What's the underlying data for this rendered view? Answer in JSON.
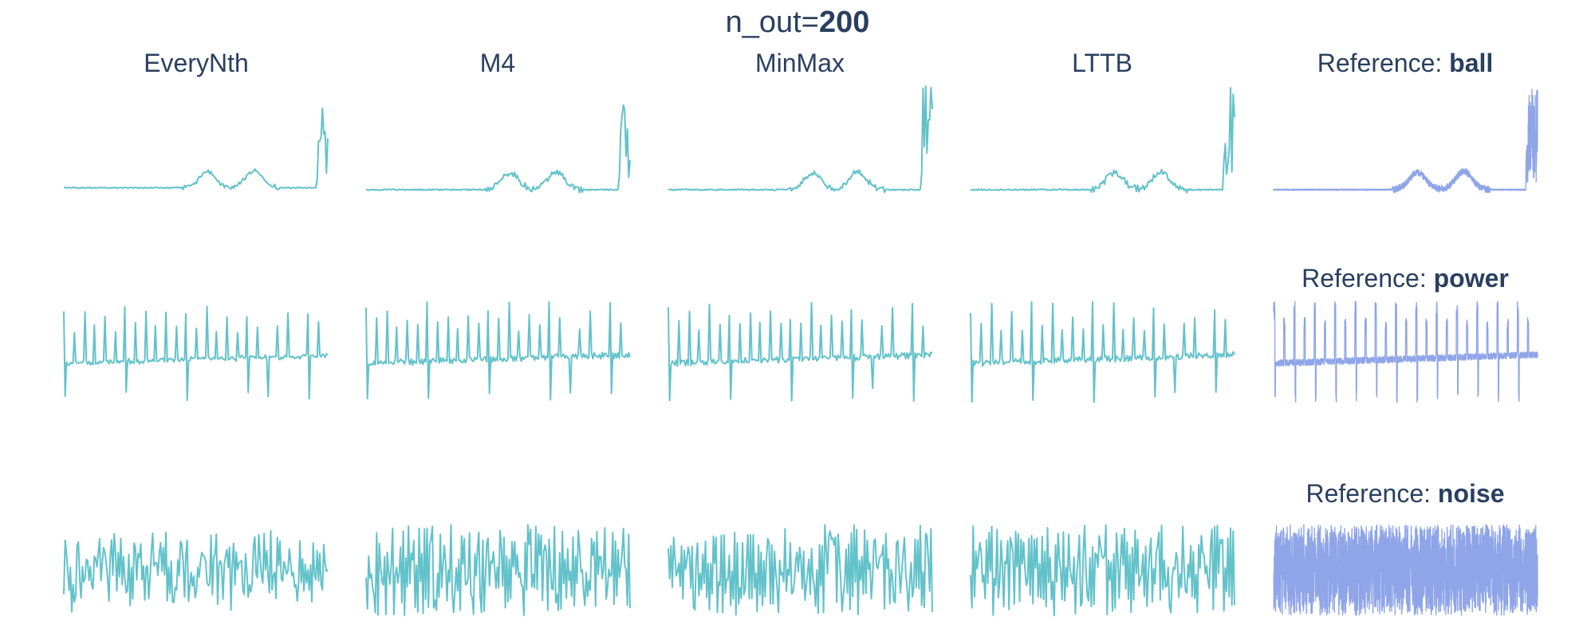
{
  "title": {
    "prefix": "n_out=",
    "value": "200"
  },
  "colors": {
    "downsampled": "#62c2ca",
    "reference": "#8fa5e8",
    "text": "#2a3f5f"
  },
  "columns": [
    "EveryNth",
    "M4",
    "MinMax",
    "LTTB"
  ],
  "reference_prefix": "Reference: ",
  "rows": [
    {
      "dataset": "ball"
    },
    {
      "dataset": "power"
    },
    {
      "dataset": "noise"
    }
  ],
  "chart_data": {
    "type": "line",
    "title": "n_out=200",
    "grid": false,
    "axes_visible": false,
    "panels": [
      {
        "dataset": "ball",
        "shape": "flat baseline, two noisy bumps at ~45-55% and ~65-80% of x range, tall spikes near the end",
        "ylim": [
          0,
          1
        ],
        "series": [
          {
            "name": "EveryNth",
            "n_points": 200
          },
          {
            "name": "M4",
            "n_points": 200
          },
          {
            "name": "MinMax",
            "n_points": 200
          },
          {
            "name": "LTTB",
            "n_points": 200
          },
          {
            "name": "Reference: ball",
            "n_points": 2000
          }
        ]
      },
      {
        "dataset": "power",
        "shape": "low baseline with regularly spaced periodic upward/downward spikes",
        "ylim": [
          0,
          1
        ],
        "series": [
          {
            "name": "EveryNth",
            "n_points": 200
          },
          {
            "name": "M4",
            "n_points": 200
          },
          {
            "name": "MinMax",
            "n_points": 200
          },
          {
            "name": "LTTB",
            "n_points": 200
          },
          {
            "name": "Reference: power",
            "n_points": 2000
          }
        ]
      },
      {
        "dataset": "noise",
        "shape": "stationary random noise around a constant mean",
        "ylim": [
          0,
          1
        ],
        "series": [
          {
            "name": "EveryNth",
            "n_points": 200
          },
          {
            "name": "M4",
            "n_points": 200
          },
          {
            "name": "MinMax",
            "n_points": 200
          },
          {
            "name": "LTTB",
            "n_points": 200
          },
          {
            "name": "Reference: noise",
            "n_points": 2000
          }
        ]
      }
    ]
  }
}
